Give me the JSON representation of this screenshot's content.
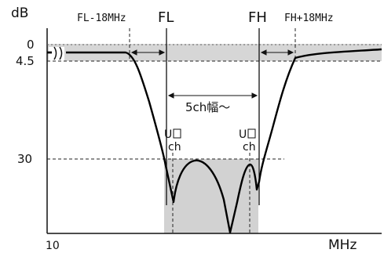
{
  "diagram": {
    "y_unit": "dB",
    "x_unit": "MHz",
    "x_origin": "10",
    "y_ticks": [
      "0",
      "4.5",
      "30"
    ],
    "markers": {
      "fl_minus": "FL-18MHz",
      "fl": "FL",
      "fh": "FH",
      "fh_plus": "FH+18MHz"
    },
    "passband_label": "5ch幅～",
    "channel_labels": [
      "U",
      "ch",
      "U",
      "ch"
    ]
  }
}
